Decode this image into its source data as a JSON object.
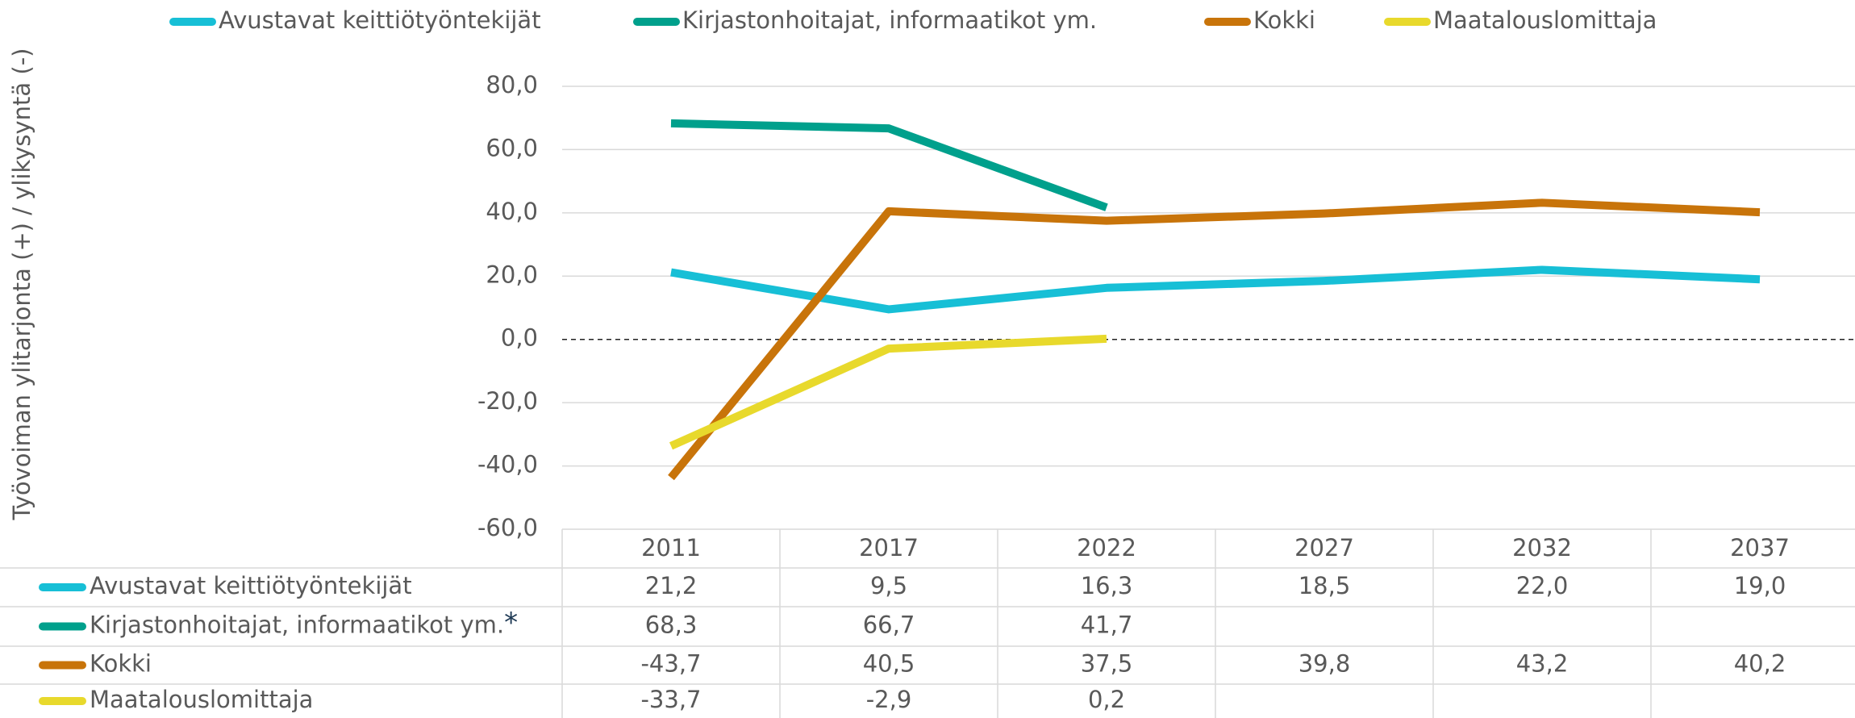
{
  "chart_data": {
    "type": "line",
    "y_axis_label": "Työvoiman ylitarjonta (+) / ylikysyntä (-)",
    "categories": [
      "2011",
      "2017",
      "2022",
      "2027",
      "2032",
      "2037"
    ],
    "ylim": [
      -60,
      80
    ],
    "yticks": [
      {
        "value": -60,
        "label": "-60,0"
      },
      {
        "value": -40,
        "label": "-40,0"
      },
      {
        "value": -20,
        "label": "-20,0"
      },
      {
        "value": 0,
        "label": "0,0"
      },
      {
        "value": 20,
        "label": "20,0"
      },
      {
        "value": 40,
        "label": "40,0"
      },
      {
        "value": 60,
        "label": "60,0"
      },
      {
        "value": 80,
        "label": "80,0"
      }
    ],
    "grid": true,
    "zero_line": "dashed",
    "legend": "top",
    "data_table": true,
    "series": [
      {
        "name": "Avustavat keittiötyöntekijät",
        "color": "#17bfd6",
        "values": [
          21.2,
          9.5,
          16.3,
          18.5,
          22.0,
          19.0
        ],
        "value_labels": [
          "21,2",
          "9,5",
          "16,3",
          "18,5",
          "22,0",
          "19,0"
        ]
      },
      {
        "name": "Kirjastonhoitajat, informaatikot ym.",
        "marker": "*",
        "color": "#00a08c",
        "values": [
          68.3,
          66.7,
          41.7,
          null,
          null,
          null
        ],
        "value_labels": [
          "68,3",
          "66,7",
          "41,7",
          null,
          null,
          null
        ]
      },
      {
        "name": "Kokki",
        "color": "#c8740a",
        "values": [
          -43.7,
          40.5,
          37.5,
          39.8,
          43.2,
          40.2
        ],
        "value_labels": [
          "-43,7",
          "40,5",
          "37,5",
          "39,8",
          "43,2",
          "40,2"
        ]
      },
      {
        "name": "Maatalouslomittaja",
        "color": "#e8d92c",
        "values": [
          -33.7,
          -2.9,
          0.2,
          null,
          null,
          null
        ],
        "value_labels": [
          "-33,7",
          "-2,9",
          "0,2",
          null,
          null,
          null
        ]
      }
    ]
  }
}
